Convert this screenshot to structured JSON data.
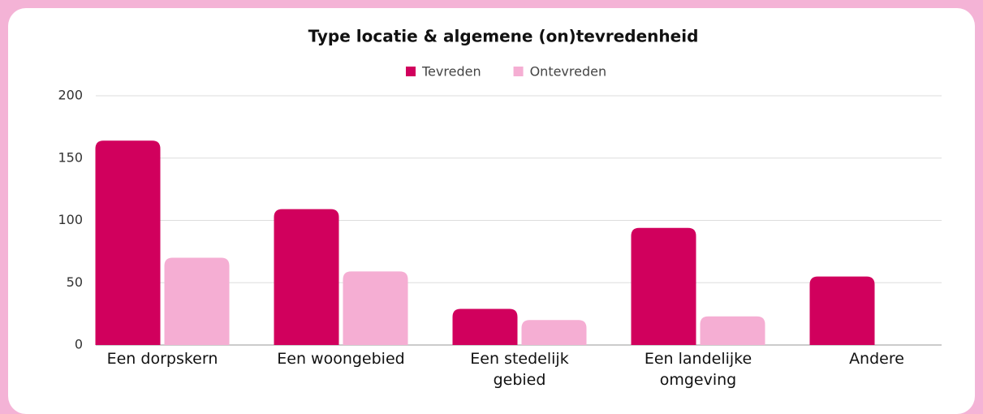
{
  "chart_data": {
    "type": "bar",
    "title": "Type locatie & algemene (on)tevredenheid",
    "categories": [
      "Een dorpskern",
      "Een woongebied",
      "Een stedelijk gebied",
      "Een landelijke omgeving",
      "Andere"
    ],
    "series": [
      {
        "name": "Tevreden",
        "color": "#d1005d",
        "values": [
          164,
          109,
          29,
          94,
          55
        ]
      },
      {
        "name": "Ontevreden",
        "color": "#f5aed3",
        "values": [
          70,
          59,
          20,
          23,
          0
        ]
      }
    ],
    "ylim": [
      0,
      200
    ],
    "yticks": [
      0,
      50,
      100,
      150,
      200
    ],
    "grid": true,
    "legend": "top"
  }
}
